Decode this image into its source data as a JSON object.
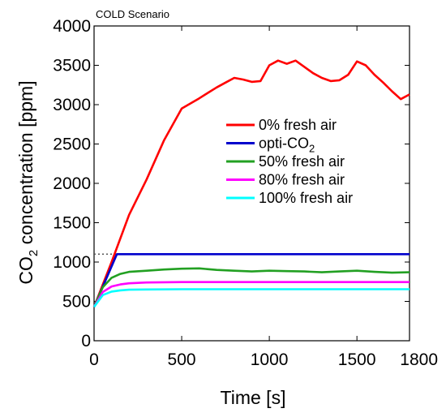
{
  "chart_data": {
    "type": "line",
    "title": "COLD Scenario",
    "xlabel": "Time [s]",
    "ylabel_main": "CO",
    "ylabel_sub": "2",
    "ylabel_rest": " concentration [ppm]",
    "xlim": [
      0,
      1800
    ],
    "ylim": [
      0,
      4000
    ],
    "x_ticks": [
      0,
      500,
      1000,
      1500,
      1800
    ],
    "y_ticks": [
      0,
      500,
      1000,
      1500,
      2000,
      2500,
      3000,
      3500,
      4000
    ],
    "grid": false,
    "legend_position": "right-center",
    "reference_line": {
      "y": 1100,
      "style": "dotted",
      "color": "#555555"
    },
    "series": [
      {
        "name": "0% fresh air",
        "color": "#ff0000",
        "x": [
          0,
          100,
          200,
          300,
          400,
          500,
          600,
          650,
          700,
          750,
          800,
          850,
          900,
          950,
          1000,
          1050,
          1100,
          1150,
          1200,
          1250,
          1300,
          1350,
          1400,
          1450,
          1500,
          1550,
          1600,
          1650,
          1700,
          1750,
          1800
        ],
        "y": [
          430,
          1000,
          1600,
          2050,
          2550,
          2950,
          3080,
          3150,
          3220,
          3280,
          3340,
          3320,
          3290,
          3300,
          3500,
          3560,
          3520,
          3560,
          3480,
          3400,
          3340,
          3300,
          3310,
          3380,
          3550,
          3500,
          3380,
          3280,
          3170,
          3070,
          3130
        ]
      },
      {
        "name": "opti-CO",
        "name_sub": "2",
        "color": "#0000cc",
        "x": [
          0,
          130,
          1800
        ],
        "y": [
          430,
          1100,
          1100
        ]
      },
      {
        "name": "50% fresh air",
        "color": "#22a022",
        "x": [
          0,
          50,
          100,
          150,
          200,
          300,
          400,
          500,
          600,
          700,
          800,
          900,
          1000,
          1100,
          1200,
          1300,
          1400,
          1500,
          1600,
          1700,
          1800
        ],
        "y": [
          430,
          680,
          800,
          850,
          875,
          890,
          905,
          915,
          920,
          900,
          890,
          880,
          890,
          885,
          880,
          870,
          880,
          890,
          875,
          865,
          870
        ]
      },
      {
        "name": "80% fresh air",
        "color": "#ff00ff",
        "x": [
          0,
          50,
          100,
          150,
          200,
          300,
          500,
          800,
          1100,
          1400,
          1800
        ],
        "y": [
          430,
          620,
          690,
          715,
          730,
          740,
          745,
          745,
          745,
          745,
          745
        ]
      },
      {
        "name": "100% fresh air",
        "color": "#00ffff",
        "x": [
          0,
          50,
          100,
          150,
          200,
          300,
          500,
          800,
          1100,
          1400,
          1800
        ],
        "y": [
          430,
          580,
          625,
          640,
          648,
          652,
          655,
          655,
          655,
          655,
          655
        ]
      }
    ]
  }
}
